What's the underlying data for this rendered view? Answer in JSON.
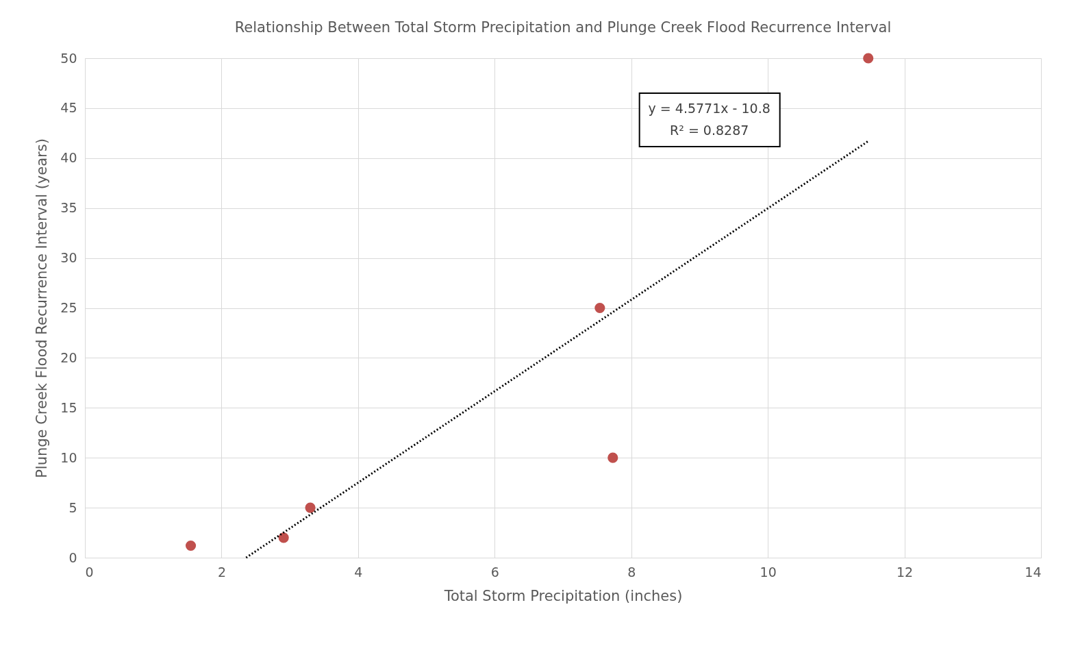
{
  "chart_data": {
    "type": "scatter",
    "title": "Relationship Between Total Storm Precipitation and Plunge Creek Flood Recurrence Interval",
    "xlabel": "Total Storm Precipitation (inches)",
    "ylabel": "Plunge Creek Flood Recurrence Interval (years)",
    "xlim": [
      0,
      14
    ],
    "ylim": [
      0,
      50
    ],
    "xticks": [
      0,
      2,
      4,
      6,
      8,
      10,
      12,
      14
    ],
    "yticks": [
      0,
      5,
      10,
      15,
      20,
      25,
      30,
      35,
      40,
      45,
      50
    ],
    "grid": true,
    "series": [
      {
        "color": "#c0504d",
        "marker": "circle",
        "x": [
          1.55,
          2.91,
          3.3,
          7.54,
          7.73,
          11.47
        ],
        "values": [
          1.2,
          2,
          5,
          25,
          10,
          50
        ]
      },
      {
        "type": "line",
        "color": "#000000",
        "line_style": "dotted",
        "marker": "none",
        "x": [
          2.36,
          11.47
        ],
        "values": [
          0,
          41.7
        ]
      }
    ],
    "annotations": [
      "y = 4.5771x - 10.8",
      "R² = 0.8287"
    ]
  }
}
